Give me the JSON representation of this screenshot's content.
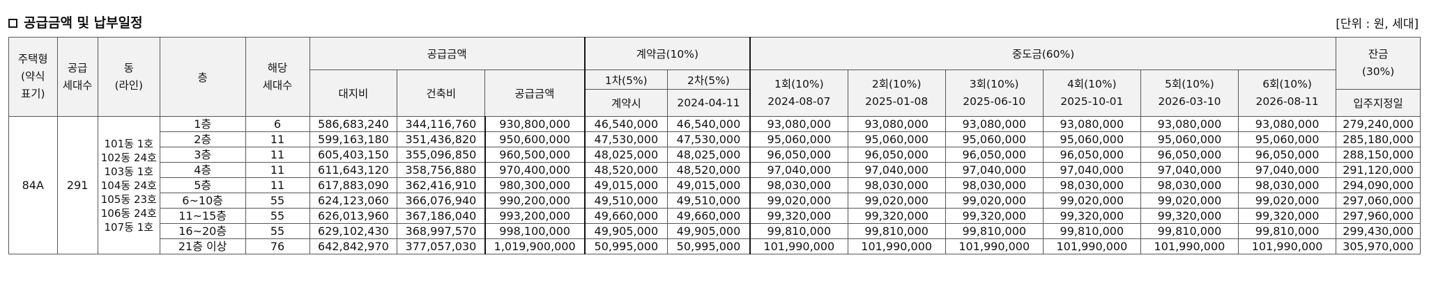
{
  "header": {
    "title": "공급금액 및 납부일정",
    "unit": "[단위 : 원, 세대]"
  },
  "columns": {
    "type": "주택형\n(약식\n표기)",
    "supply_households": "공급\n세대수",
    "dong": "동\n(라인)",
    "floor": "층",
    "units": "해당\n세대수",
    "supply_amount": "공급금액",
    "land": "대지비",
    "building": "건축비",
    "supply_total": "공급금액",
    "deposit": "계약금(10%)",
    "deposit_1": "1차(5%)",
    "deposit_1_when": "계약시",
    "deposit_2": "2차(5%)",
    "deposit_2_date": "2024-04-11",
    "interim": "중도금(60%)",
    "interim_labels": [
      "1회(10%)",
      "2회(10%)",
      "3회(10%)",
      "4회(10%)",
      "5회(10%)",
      "6회(10%)"
    ],
    "interim_dates": [
      "2024-08-07",
      "2025-01-08",
      "2025-06-10",
      "2025-10-01",
      "2026-03-10",
      "2026-08-11"
    ],
    "balance": "잔금\n(30%)",
    "balance_when": "입주지정일"
  },
  "group": {
    "type": "84A",
    "supply_households": "291",
    "dongs": "101동 1호\n102동 24호\n103동 1호\n104동 24호\n105동 23호\n106동 24호\n107동 1호"
  },
  "rows": [
    {
      "floor": "1층",
      "units": "6",
      "land": "586,683,240",
      "building": "344,116,760",
      "total": "930,800,000",
      "d1": "46,540,000",
      "d2": "46,540,000",
      "interim": "93,080,000",
      "balance": "279,240,000"
    },
    {
      "floor": "2층",
      "units": "11",
      "land": "599,163,180",
      "building": "351,436,820",
      "total": "950,600,000",
      "d1": "47,530,000",
      "d2": "47,530,000",
      "interim": "95,060,000",
      "balance": "285,180,000"
    },
    {
      "floor": "3층",
      "units": "11",
      "land": "605,403,150",
      "building": "355,096,850",
      "total": "960,500,000",
      "d1": "48,025,000",
      "d2": "48,025,000",
      "interim": "96,050,000",
      "balance": "288,150,000"
    },
    {
      "floor": "4층",
      "units": "11",
      "land": "611,643,120",
      "building": "358,756,880",
      "total": "970,400,000",
      "d1": "48,520,000",
      "d2": "48,520,000",
      "interim": "97,040,000",
      "balance": "291,120,000"
    },
    {
      "floor": "5층",
      "units": "11",
      "land": "617,883,090",
      "building": "362,416,910",
      "total": "980,300,000",
      "d1": "49,015,000",
      "d2": "49,015,000",
      "interim": "98,030,000",
      "balance": "294,090,000"
    },
    {
      "floor": "6~10층",
      "units": "55",
      "land": "624,123,060",
      "building": "366,076,940",
      "total": "990,200,000",
      "d1": "49,510,000",
      "d2": "49,510,000",
      "interim": "99,020,000",
      "balance": "297,060,000"
    },
    {
      "floor": "11~15층",
      "units": "55",
      "land": "626,013,960",
      "building": "367,186,040",
      "total": "993,200,000",
      "d1": "49,660,000",
      "d2": "49,660,000",
      "interim": "99,320,000",
      "balance": "297,960,000"
    },
    {
      "floor": "16~20층",
      "units": "55",
      "land": "629,102,430",
      "building": "368,997,570",
      "total": "998,100,000",
      "d1": "49,905,000",
      "d2": "49,905,000",
      "interim": "99,810,000",
      "balance": "299,430,000"
    },
    {
      "floor": "21층 이상",
      "units": "76",
      "land": "642,842,970",
      "building": "377,057,030",
      "total": "1,019,900,000",
      "d1": "50,995,000",
      "d2": "50,995,000",
      "interim": "101,990,000",
      "balance": "305,970,000"
    }
  ]
}
